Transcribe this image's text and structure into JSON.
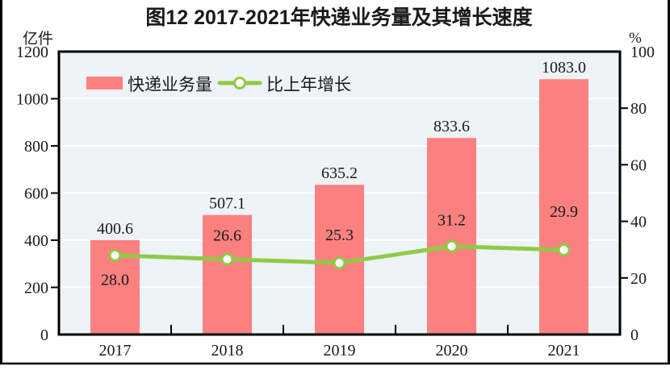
{
  "title": "图12  2017-2021年快递业务量及其增长速度",
  "left_axis": {
    "unit": "亿件",
    "max": 1200,
    "ticks": [
      0,
      200,
      400,
      600,
      800,
      1000,
      1200
    ]
  },
  "right_axis": {
    "unit": "%",
    "max": 100,
    "ticks": [
      0,
      20,
      40,
      60,
      80,
      100
    ]
  },
  "legend": [
    {
      "label": "快递业务量",
      "type": "bar"
    },
    {
      "label": "比上年增长",
      "type": "line"
    }
  ],
  "chart_data": {
    "type": "bar+line",
    "title": "图12  2017-2021年快递业务量及其增长速度",
    "categories": [
      "2017",
      "2018",
      "2019",
      "2020",
      "2021"
    ],
    "series": [
      {
        "name": "快递业务量",
        "type": "bar",
        "axis": "left",
        "color": "#FB8181",
        "values": [
          400.6,
          507.1,
          635.2,
          833.6,
          1083.0
        ],
        "labels": [
          "400.6",
          "507.1",
          "635.2",
          "833.6",
          "1083.0"
        ]
      },
      {
        "name": "比上年增长",
        "type": "line",
        "axis": "right",
        "color": "#8FCA45",
        "marker_fill": "#FFFFFF",
        "values": [
          28.0,
          26.6,
          25.3,
          31.2,
          29.9
        ],
        "labels": [
          "28.0",
          "26.6",
          "25.3",
          "31.2",
          "29.9"
        ]
      }
    ],
    "left_ylim": [
      0,
      1200
    ],
    "right_ylim": [
      0,
      100
    ],
    "grid": true,
    "legend_position": "top-left-inside"
  },
  "colors": {
    "plot_bg": "#EDF3F6",
    "grid": "#FFFFFF",
    "frame": "#000000",
    "text": "#1A1A1A"
  }
}
